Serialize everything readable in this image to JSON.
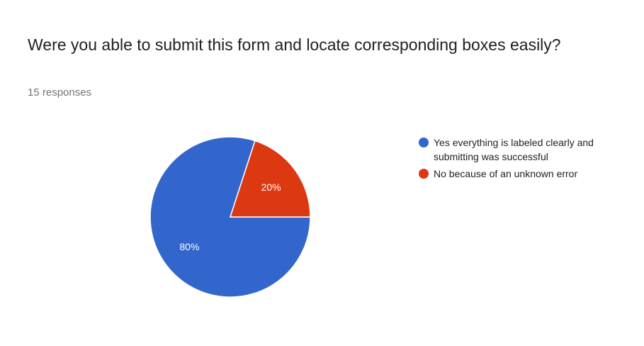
{
  "question": {
    "title": "Were you able to submit this form and locate corresponding boxes easily?",
    "responses": "15 responses"
  },
  "chart_data": {
    "type": "pie",
    "slices": [
      {
        "label": "Yes everything is labeled clearly and submitting was successful",
        "value": 80,
        "display": "80%",
        "color": "#3366cc"
      },
      {
        "label": "No because of an unknown error",
        "value": 20,
        "display": "20%",
        "color": "#dc3912"
      }
    ],
    "legend_position": "right"
  }
}
